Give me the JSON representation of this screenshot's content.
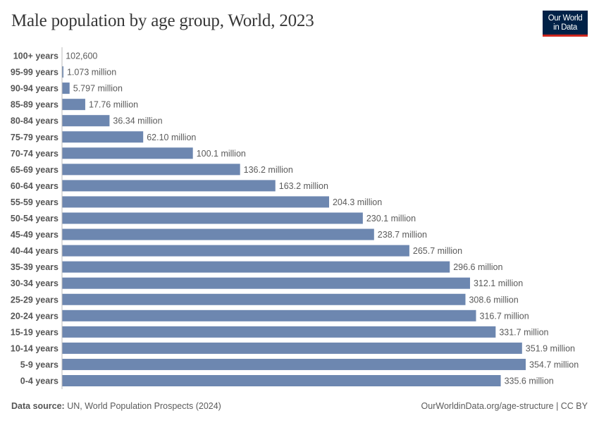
{
  "title": "Male population by age group, World, 2023",
  "logo": {
    "line1": "Our World",
    "line2": "in Data",
    "bg": "#002147",
    "accent": "#ce261e"
  },
  "footer": {
    "source_label": "Data source:",
    "source_text": "UN, World Population Prospects (2024)",
    "right": "OurWorldinData.org/age-structure | CC BY"
  },
  "chart_data": {
    "type": "bar",
    "orientation": "horizontal",
    "title": "Male population by age group, World, 2023",
    "bar_color": "#6d87b0",
    "categories": [
      "100+ years",
      "95-99 years",
      "90-94 years",
      "85-89 years",
      "80-84 years",
      "75-79 years",
      "70-74 years",
      "65-69 years",
      "60-64 years",
      "55-59 years",
      "50-54 years",
      "45-49 years",
      "40-44 years",
      "35-39 years",
      "30-34 years",
      "25-29 years",
      "20-24 years",
      "15-19 years",
      "10-14 years",
      "5-9 years",
      "0-4 years"
    ],
    "values": [
      102600,
      1073000,
      5797000,
      17760000,
      36340000,
      62100000,
      100100000,
      136200000,
      163200000,
      204300000,
      230100000,
      238700000,
      265700000,
      296600000,
      312100000,
      308600000,
      316700000,
      331700000,
      351900000,
      354700000,
      335600000
    ],
    "labels": [
      "102,600",
      "1.073 million",
      "5.797 million",
      "17.76 million",
      "36.34 million",
      "62.10 million",
      "100.1 million",
      "136.2 million",
      "163.2 million",
      "204.3 million",
      "230.1 million",
      "238.7 million",
      "265.7 million",
      "296.6 million",
      "312.1 million",
      "308.6 million",
      "316.7 million",
      "331.7 million",
      "351.9 million",
      "354.7 million",
      "335.6 million"
    ]
  }
}
